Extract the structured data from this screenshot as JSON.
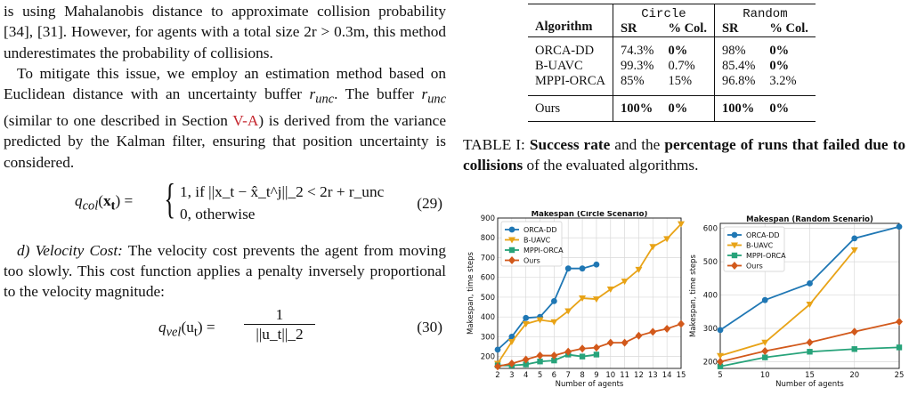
{
  "left": {
    "p1": "is using Mahalanobis distance to approximate collision probability [34], [31]. However, for agents with a total size 2r > 0.3m, this method underestimates the probability of collisions.",
    "p2a": "To mitigate this issue, we employ an estimation method based on Euclidean distance with an uncertainty buffer ",
    "p2b": ". The buffer ",
    "p2c": " (similar to one described in Section ",
    "p2link": "V-A",
    "p2d": ") is derived from the variance predicted by the Kalman filter, ensuring that position uncertainty is considered.",
    "runc": "r",
    "runc_sub": "unc",
    "eq29_lhs": "q",
    "eq29_sub": "col",
    "eq29_case1": "1,   if ||x_t − x̂_t^j||_2 < 2r + r_unc",
    "eq29_case2": "0,   otherwise",
    "eq29_num": "(29)",
    "p3_title": "d) Velocity Cost:",
    "p3": " The velocity cost prevents the agent from moving too slowly. This cost function applies a penalty inversely proportional to the velocity magnitude:",
    "eq30_lhs": "q",
    "eq30_sub": "vel",
    "eq30_arg": "(u",
    "eq30_num": "(30)",
    "eq30_numer": "1",
    "eq30_denom": "||u_t||_2"
  },
  "table": {
    "header_algo": "Algorithm",
    "group1": "Circle",
    "group2": "Random",
    "sub": [
      "SR",
      "% Col.",
      "SR",
      "% Col."
    ],
    "rows": [
      {
        "name": "ORCA-DD",
        "vals": [
          "74.3%",
          "0%",
          "98%",
          "0%"
        ]
      },
      {
        "name": "B-UAVC",
        "vals": [
          "99.3%",
          "0.7%",
          "85.4%",
          "0%"
        ]
      },
      {
        "name": "MPPI-ORCA",
        "vals": [
          "85%",
          "15%",
          "96.8%",
          "3.2%"
        ]
      }
    ],
    "ours": {
      "name": "Ours",
      "vals": [
        "100%",
        "0%",
        "100%",
        "0%"
      ]
    }
  },
  "caption": {
    "label": "TABLE I: ",
    "b1": "Success rate",
    "t1": " and the ",
    "b2": "percentage of runs that failed due to collisions",
    "t2": " of the evaluated algorithms."
  },
  "colors": {
    "orca": "#1f77b4",
    "buavc": "#e8a317",
    "mppi": "#27a37a",
    "ours": "#d2591b"
  },
  "chart_data": [
    {
      "type": "line",
      "title": "Makespan (Circle Scenario)",
      "xlabel": "Number of agents",
      "ylabel": "Makespan, time steps",
      "xlim": [
        2,
        15
      ],
      "ylim": [
        140,
        900
      ],
      "xticks": [
        2,
        3,
        4,
        5,
        6,
        7,
        8,
        9,
        10,
        11,
        12,
        13,
        14,
        15
      ],
      "yticks": [
        200,
        300,
        400,
        500,
        600,
        700,
        800,
        900
      ],
      "legend": "top-left",
      "series": [
        {
          "name": "ORCA-DD",
          "x": [
            2,
            3,
            4,
            5,
            6,
            7,
            8,
            9
          ],
          "values": [
            235,
            300,
            395,
            400,
            480,
            645,
            645,
            665
          ]
        },
        {
          "name": "B-UAVC",
          "x": [
            2,
            3,
            4,
            5,
            6,
            7,
            8,
            9,
            10,
            11,
            12,
            13,
            14,
            15
          ],
          "values": [
            165,
            275,
            365,
            385,
            375,
            430,
            495,
            490,
            540,
            580,
            640,
            755,
            795,
            870
          ]
        },
        {
          "name": "MPPI-ORCA",
          "x": [
            2,
            3,
            4,
            5,
            6,
            7,
            8,
            9
          ],
          "values": [
            155,
            155,
            160,
            175,
            180,
            210,
            200,
            210
          ]
        },
        {
          "name": "Ours",
          "x": [
            2,
            3,
            4,
            5,
            6,
            7,
            8,
            9,
            10,
            11,
            12,
            13,
            14,
            15
          ],
          "values": [
            150,
            165,
            185,
            205,
            205,
            225,
            240,
            245,
            270,
            270,
            305,
            325,
            340,
            365
          ]
        }
      ]
    },
    {
      "type": "line",
      "title": "Makespan (Random Scenario)",
      "xlabel": "Number of agents",
      "ylabel": "Makespan, time steps",
      "xlim": [
        5,
        25
      ],
      "ylim": [
        180,
        615
      ],
      "xticks": [
        5,
        10,
        15,
        20,
        25
      ],
      "yticks": [
        200,
        300,
        400,
        500,
        600
      ],
      "legend": "top-left",
      "series": [
        {
          "name": "ORCA-DD",
          "x": [
            5,
            10,
            15,
            20,
            25
          ],
          "values": [
            295,
            385,
            435,
            570,
            605
          ]
        },
        {
          "name": "B-UAVC",
          "x": [
            5,
            10,
            15,
            20
          ],
          "values": [
            218,
            258,
            372,
            535
          ]
        },
        {
          "name": "MPPI-ORCA",
          "x": [
            5,
            10,
            15,
            20,
            25
          ],
          "values": [
            186,
            213,
            230,
            238,
            243
          ]
        },
        {
          "name": "Ours",
          "x": [
            5,
            10,
            15,
            20,
            25
          ],
          "values": [
            200,
            232,
            258,
            290,
            320
          ]
        }
      ]
    }
  ]
}
